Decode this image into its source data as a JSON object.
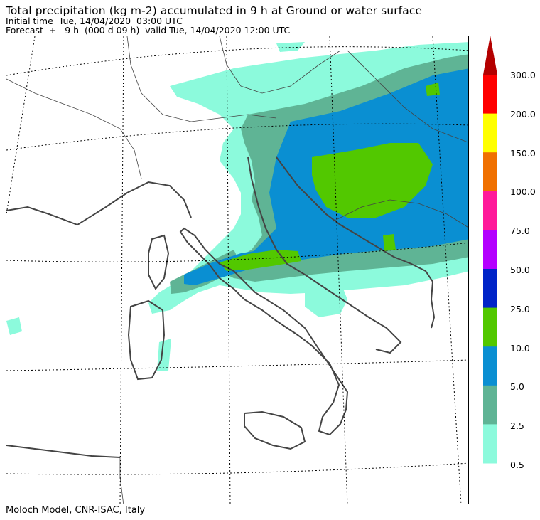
{
  "header": {
    "title": "Total precipitation (kg m-2) accumulated in   9 h at Ground or water surface",
    "initial_time": "Initial time  Tue, 14/04/2020  03:00 UTC",
    "forecast": "Forecast  +   9 h  (000 d 09 h)  valid Tue, 14/04/2020 12:00 UTC"
  },
  "legend": {
    "labels": [
      "300.0",
      "200.0",
      "150.0",
      "100.0",
      "75.0",
      "50.0",
      "25.0",
      "10.0",
      "5.0",
      "2.5",
      "0.5"
    ],
    "colors": [
      "#ff0000",
      "#ffff00",
      "#f07000",
      "#ff1a9a",
      "#b400ff",
      "#0024c8",
      "#52c800",
      "#0a8fd2",
      "#5fb495",
      "#8cfadc"
    ],
    "overflow_color": "#b40000"
  },
  "map": {
    "colors": {
      "land_border": "#444444",
      "coast": "#444444",
      "grid": "#000000"
    }
  },
  "footer": {
    "credit": "Moloch Model, CNR-ISAC, Italy"
  }
}
